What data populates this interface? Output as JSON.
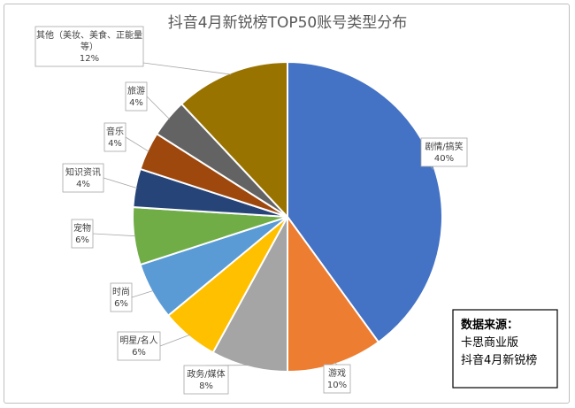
{
  "chart_data": {
    "type": "pie",
    "title": "抖音4月新锐榜TOP50账号类型分布",
    "slices": [
      {
        "name": "剧情/搞笑",
        "value": 40,
        "label": "40%",
        "color": "#4472C4"
      },
      {
        "name": "游戏",
        "value": 10,
        "label": "10%",
        "color": "#ED7D31"
      },
      {
        "name": "政务/媒体",
        "value": 8,
        "label": "8%",
        "color": "#A5A5A5"
      },
      {
        "name": "明星/名人",
        "value": 6,
        "label": "6%",
        "color": "#FFC000"
      },
      {
        "name": "时尚",
        "value": 6,
        "label": "6%",
        "color": "#5B9BD5"
      },
      {
        "name": "宠物",
        "value": 6,
        "label": "6%",
        "color": "#70AD47"
      },
      {
        "name": "知识资讯",
        "value": 4,
        "label": "4%",
        "color": "#264478"
      },
      {
        "name": "音乐",
        "value": 4,
        "label": "4%",
        "color": "#9E480E"
      },
      {
        "name": "旅游",
        "value": 4,
        "label": "4%",
        "color": "#636363"
      },
      {
        "name": "其他（美妆、美食、正能量等）",
        "value": 12,
        "label": "12%",
        "color": "#997300"
      }
    ],
    "legend": "none"
  },
  "note": {
    "title": "数据来源：",
    "lines": [
      "卡思商业版",
      "抖音4月新锐榜"
    ]
  }
}
